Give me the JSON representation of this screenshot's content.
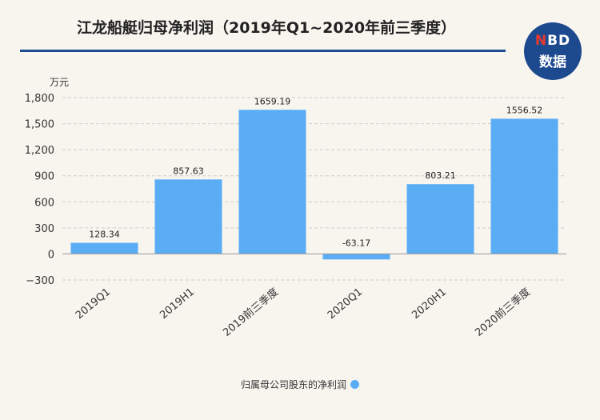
{
  "title": "江龙船艇归母净利润（2019年Q1~2020年前三季度）",
  "logo": {
    "line1_n": "N",
    "line1_rest": "BD",
    "line2": "数据"
  },
  "colors": {
    "bar": "#5aadf5",
    "rule": "#1e4d96",
    "grid": "#cccccc"
  },
  "chart_data": {
    "type": "bar",
    "title": "江龙船艇归母净利润（2019年Q1~2020年前三季度）",
    "ylabel": "万元",
    "xlabel": "",
    "categories": [
      "2019Q1",
      "2019H1",
      "2019前三季度",
      "2020Q1",
      "2020H1",
      "2020前三季度"
    ],
    "series": [
      {
        "name": "归属母公司股东的净利润",
        "values": [
          128.34,
          857.63,
          1659.19,
          -63.17,
          803.21,
          1556.52
        ]
      }
    ],
    "value_labels": [
      "128.34",
      "857.63",
      "1659.19",
      "-63.17",
      "803.21",
      "1556.52"
    ],
    "ylim": [
      -300,
      1800
    ],
    "yticks": [
      -300,
      0,
      300,
      600,
      900,
      1200,
      1500,
      1800
    ],
    "ytick_labels": [
      "−300",
      "0",
      "300",
      "600",
      "900",
      "1,200",
      "1,500",
      "1,800"
    ],
    "grid": true,
    "legend": "bottom-center"
  }
}
